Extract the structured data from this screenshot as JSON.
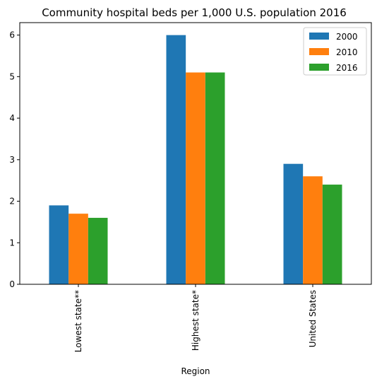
{
  "chart_data": {
    "type": "bar",
    "title": "Community hospital beds per 1,000 U.S. population 2016",
    "xlabel": "Region",
    "ylabel": "",
    "categories": [
      "Lowest state**",
      "Highest state*",
      "United States"
    ],
    "series": [
      {
        "name": "2000",
        "values": [
          1.9,
          6.0,
          2.9
        ],
        "color": "#1f77b4"
      },
      {
        "name": "2010",
        "values": [
          1.7,
          5.1,
          2.6
        ],
        "color": "#ff7f0e"
      },
      {
        "name": "2016",
        "values": [
          1.6,
          5.1,
          2.4
        ],
        "color": "#2ca02c"
      }
    ],
    "ylim": [
      0,
      6.3
    ],
    "yticks": [
      0,
      1,
      2,
      3,
      4,
      5,
      6
    ],
    "grid": false,
    "legend_position": "top-right"
  }
}
